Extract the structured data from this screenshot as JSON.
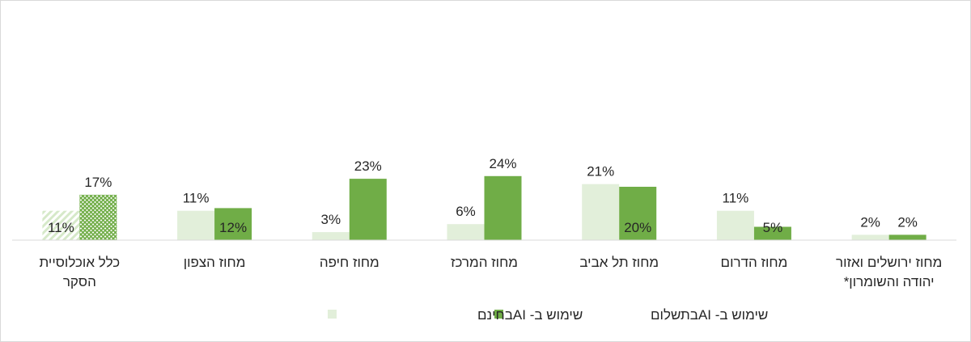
{
  "chart_data": {
    "type": "bar",
    "categories": [
      [
        "כלל אוכלוסיית",
        "הסקר"
      ],
      [
        "מחוז הצפון"
      ],
      [
        "מחוז חיפה"
      ],
      [
        "מחוז המרכז"
      ],
      [
        "מחוז תל אביב"
      ],
      [
        "מחוז הדרום"
      ],
      [
        "מחוז ירושלים ואזור",
        "יהודה והשומרון*"
      ]
    ],
    "series": [
      {
        "name": "שימוש ב- AIבחינם",
        "values": [
          11,
          11,
          3,
          6,
          21,
          11,
          2
        ],
        "labels": [
          "11%",
          "11%",
          "3%",
          "6%",
          "21%",
          "11%",
          "2%"
        ],
        "color": "#e2efda"
      },
      {
        "name": "שימוש ב- AIבתשלום",
        "values": [
          17,
          12,
          23,
          24,
          20,
          5,
          2
        ],
        "labels": [
          "17%",
          "12%",
          "23%",
          "24%",
          "20%",
          "5%",
          "2%"
        ],
        "color": "#70ad47"
      }
    ],
    "highlight_first_category_pattern": true,
    "ylim": [
      0,
      90
    ],
    "legend_position": "bottom",
    "grid": false
  }
}
